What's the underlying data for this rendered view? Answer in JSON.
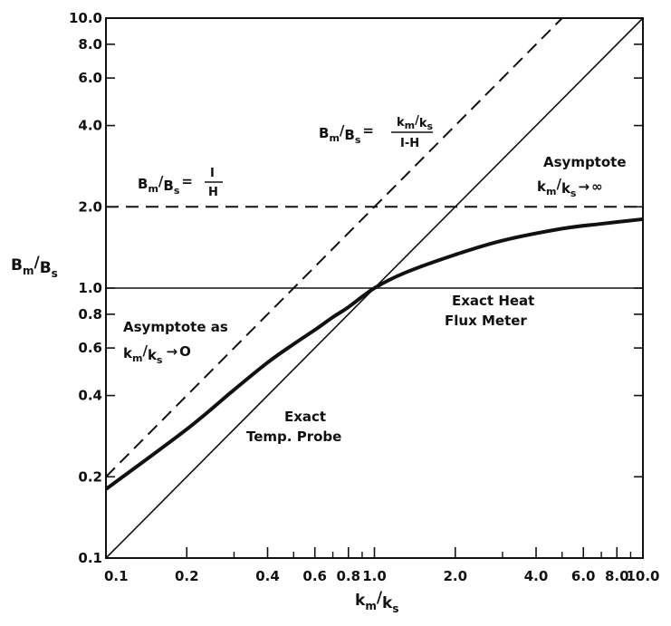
{
  "chart_data": {
    "type": "line",
    "xscale": "log",
    "yscale": "log",
    "xlim": [
      0.1,
      10.0
    ],
    "ylim": [
      0.1,
      10.0
    ],
    "xlabel": {
      "main": "k",
      "sub1": "m",
      "slash": "/",
      "main2": "k",
      "sub2": "s"
    },
    "ylabel": {
      "main": "B",
      "sub1": "m",
      "slash": "/",
      "main2": "B",
      "sub2": "s"
    },
    "x_ticks": [
      {
        "value": 0.1,
        "label": "0.1"
      },
      {
        "value": 0.2,
        "label": "0.2"
      },
      {
        "value": 0.4,
        "label": "0.4"
      },
      {
        "value": 0.6,
        "label": "0.6"
      },
      {
        "value": 0.8,
        "label": "0.8"
      },
      {
        "value": 1.0,
        "label": "1.0"
      },
      {
        "value": 2.0,
        "label": "2.0"
      },
      {
        "value": 4.0,
        "label": "4.0"
      },
      {
        "value": 6.0,
        "label": "6.0"
      },
      {
        "value": 8.0,
        "label": "8.0"
      },
      {
        "value": 10.0,
        "label": "10.0"
      }
    ],
    "x_minor_ticks": [
      0.3,
      0.5,
      0.7,
      0.9,
      3,
      5,
      7,
      9
    ],
    "y_ticks": [
      {
        "value": 0.1,
        "label": "0.1"
      },
      {
        "value": 0.2,
        "label": "0.2"
      },
      {
        "value": 0.4,
        "label": "0.4"
      },
      {
        "value": 0.6,
        "label": "0.6"
      },
      {
        "value": 0.8,
        "label": "0.8"
      },
      {
        "value": 1.0,
        "label": "1.0"
      },
      {
        "value": 2.0,
        "label": "2.0"
      },
      {
        "value": 4.0,
        "label": "4.0"
      },
      {
        "value": 6.0,
        "label": "6.0"
      },
      {
        "value": 8.0,
        "label": "8.0"
      },
      {
        "value": 10.0,
        "label": "10.0"
      }
    ],
    "series": [
      {
        "style": "solid-thin",
        "x": [
          0.1,
          10.0
        ],
        "y": [
          0.1,
          10.0
        ]
      },
      {
        "style": "dashed",
        "x": [
          0.1,
          5.0
        ],
        "y": [
          0.2,
          10.0
        ]
      },
      {
        "style": "dashed",
        "x": [
          0.1,
          10.0
        ],
        "y": [
          2.0,
          2.0
        ]
      },
      {
        "style": "solid-thin",
        "x": [
          0.1,
          10.0
        ],
        "y": [
          1.0,
          1.0
        ]
      },
      {
        "style": "solid-thick",
        "x": [
          0.1,
          0.2,
          0.3,
          0.4,
          0.5,
          0.6,
          0.7,
          0.8,
          1.0,
          1.3,
          2.0,
          3.0,
          5.0,
          7.0,
          10.0
        ],
        "y": [
          0.18,
          0.3,
          0.42,
          0.53,
          0.62,
          0.7,
          0.78,
          0.85,
          1.0,
          1.14,
          1.33,
          1.5,
          1.66,
          1.73,
          1.8
        ]
      }
    ],
    "annotations": {
      "temp_probe": {
        "line1": "Exact",
        "line2": "Temp. Probe"
      },
      "heat_flux": {
        "line1": "Exact Heat",
        "line2": "Flux Meter"
      },
      "asymptote_zero": {
        "line1": "Asymptote as",
        "k": "k",
        "m": "m",
        "slash": "/",
        "k2": "k",
        "s": "s",
        "arrow": "→",
        "target": "O"
      },
      "asymptote_inf": {
        "line1": "Asymptote",
        "k": "k",
        "m": "m",
        "slash": "/",
        "k2": "k",
        "s": "s",
        "arrow": "→",
        "target": "∞"
      },
      "eq_one_over_h": {
        "b": "B",
        "m": "m",
        "slash": "/",
        "b2": "B",
        "s": "s",
        "eq": "=",
        "num": "I",
        "den": "H"
      },
      "eq_km_ks": {
        "b": "B",
        "m": "m",
        "slash": "/",
        "b2": "B",
        "s": "s",
        "eq": "=",
        "numk": "k",
        "numm": "m",
        "numslash": "/",
        "numk2": "k",
        "nums": "s",
        "den": "I-H"
      }
    }
  }
}
